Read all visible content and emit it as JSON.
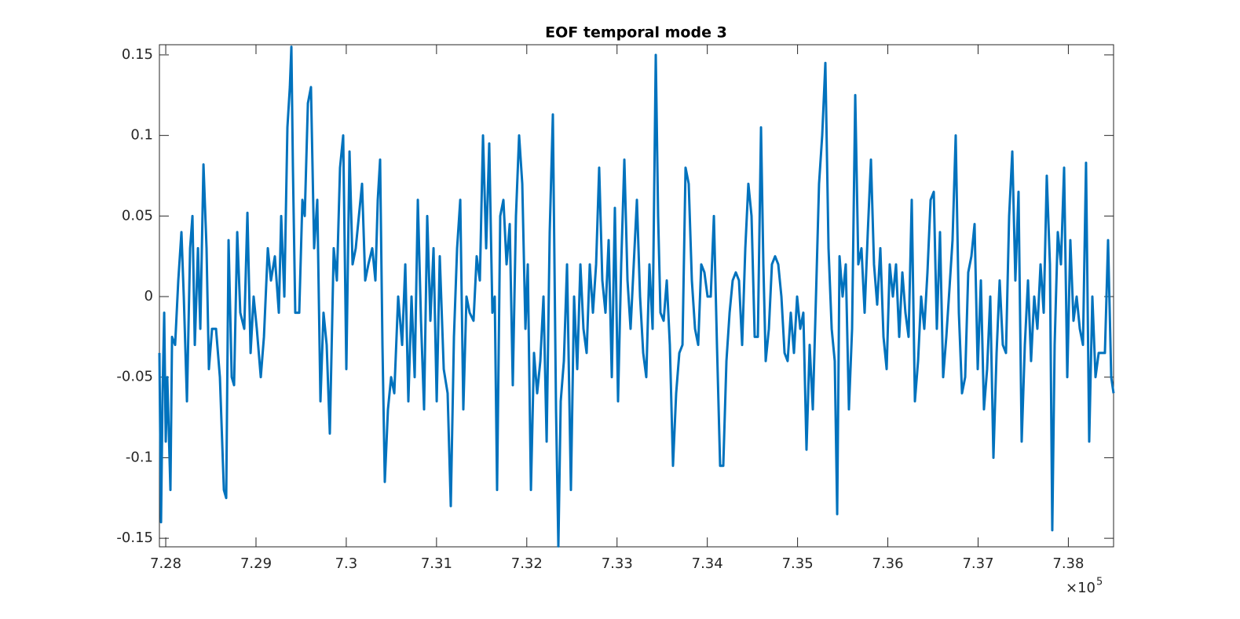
{
  "chart_data": {
    "type": "line",
    "title": "EOF temporal mode 3",
    "x_exponent": {
      "base": "×10",
      "power": "5"
    },
    "xlim": [
      727930,
      738501
    ],
    "xticks": [
      {
        "value": 728000,
        "label": "7.28"
      },
      {
        "value": 729000,
        "label": "7.29"
      },
      {
        "value": 730000,
        "label": "7.3"
      },
      {
        "value": 731000,
        "label": "7.31"
      },
      {
        "value": 732000,
        "label": "7.32"
      },
      {
        "value": 733000,
        "label": "7.33"
      },
      {
        "value": 734000,
        "label": "7.34"
      },
      {
        "value": 735000,
        "label": "7.35"
      },
      {
        "value": 736000,
        "label": "7.36"
      },
      {
        "value": 737000,
        "label": "7.37"
      },
      {
        "value": 738000,
        "label": "7.38"
      }
    ],
    "ylim": [
      -0.1553,
      0.1563
    ],
    "yticks": [
      -0.15,
      -0.1,
      -0.05,
      0,
      0.05,
      0.1,
      0.15
    ],
    "grid": false,
    "x": [
      727930,
      727948,
      727965,
      727983,
      728000,
      728017,
      728052,
      728070,
      728104,
      728139,
      728174,
      728200,
      728235,
      728270,
      728296,
      728322,
      728357,
      728383,
      728418,
      728452,
      728478,
      728513,
      728557,
      728600,
      728644,
      728670,
      728696,
      728731,
      728757,
      728792,
      728826,
      728870,
      728905,
      728940,
      728974,
      729009,
      729053,
      729088,
      729131,
      729166,
      729209,
      729253,
      729279,
      729314,
      729348,
      729375,
      729392,
      729409,
      729435,
      729479,
      729514,
      729540,
      729575,
      729609,
      729644,
      729679,
      729714,
      729748,
      729783,
      729818,
      729861,
      729896,
      729931,
      729966,
      730001,
      730036,
      730070,
      730105,
      730140,
      730175,
      730210,
      730245,
      730288,
      730323,
      730349,
      730375,
      730401,
      730427,
      730462,
      730497,
      730532,
      730575,
      730619,
      730654,
      730688,
      730723,
      730758,
      730793,
      730828,
      730862,
      730897,
      730932,
      730967,
      731002,
      731036,
      731080,
      731123,
      731158,
      731193,
      731228,
      731263,
      731297,
      731332,
      731367,
      731410,
      731445,
      731480,
      731515,
      731550,
      731584,
      731619,
      731645,
      731671,
      731706,
      731741,
      731776,
      731811,
      731845,
      731880,
      731915,
      731950,
      731985,
      732011,
      732046,
      732080,
      732115,
      732150,
      732185,
      732220,
      732254,
      732289,
      732324,
      732350,
      732376,
      732411,
      732446,
      732489,
      732524,
      732559,
      732594,
      732628,
      732663,
      732698,
      732733,
      732768,
      732802,
      732837,
      732872,
      732907,
      732942,
      732976,
      733011,
      733046,
      733081,
      733116,
      733150,
      733185,
      733220,
      733255,
      733290,
      733324,
      733359,
      733394,
      733429,
      733455,
      733481,
      733516,
      733551,
      733585,
      733620,
      733655,
      733690,
      733725,
      733759,
      733794,
      733829,
      733864,
      733899,
      733933,
      733968,
      734003,
      734038,
      734073,
      734107,
      734142,
      734177,
      734212,
      734247,
      734281,
      734316,
      734351,
      734386,
      734421,
      734455,
      734490,
      734525,
      734560,
      734595,
      734621,
      734647,
      734682,
      734716,
      734751,
      734786,
      734821,
      734856,
      734890,
      734925,
      734960,
      734995,
      735030,
      735064,
      735099,
      735134,
      735169,
      735204,
      735238,
      735273,
      735308,
      735343,
      735378,
      735412,
      735439,
      735465,
      735499,
      735534,
      735569,
      735604,
      735639,
      735673,
      735708,
      735743,
      735778,
      735813,
      735847,
      735882,
      735917,
      735952,
      735987,
      736021,
      736056,
      736091,
      736126,
      736161,
      736195,
      736230,
      736265,
      736300,
      736335,
      736369,
      736404,
      736439,
      736474,
      736509,
      736543,
      736578,
      736613,
      736648,
      736683,
      736717,
      736752,
      736787,
      736822,
      736857,
      736891,
      736926,
      736961,
      736996,
      737031,
      737065,
      737100,
      737135,
      737170,
      737205,
      737239,
      737274,
      737309,
      737344,
      737379,
      737413,
      737448,
      737483,
      737518,
      737553,
      737587,
      737622,
      737657,
      737692,
      737727,
      737761,
      737796,
      737822,
      737848,
      737883,
      737918,
      737953,
      737988,
      738022,
      738057,
      738092,
      738127,
      738162,
      738196,
      738231,
      738266,
      738301,
      738336,
      738370,
      738405,
      738440,
      738475,
      738501
    ],
    "series": [
      {
        "color": "#0072bd",
        "values": [
          -0.035,
          -0.14,
          -0.06,
          -0.01,
          -0.09,
          -0.05,
          -0.12,
          -0.025,
          -0.03,
          0.01,
          0.04,
          0.0,
          -0.065,
          0.03,
          0.05,
          -0.03,
          0.03,
          -0.02,
          0.082,
          0.03,
          -0.045,
          -0.02,
          -0.02,
          -0.05,
          -0.12,
          -0.125,
          0.035,
          -0.05,
          -0.055,
          0.04,
          -0.01,
          -0.02,
          0.052,
          -0.035,
          0.0,
          -0.02,
          -0.05,
          -0.025,
          0.03,
          0.01,
          0.025,
          -0.01,
          0.05,
          0.0,
          0.105,
          0.13,
          0.155,
          0.08,
          -0.01,
          -0.01,
          0.06,
          0.05,
          0.12,
          0.13,
          0.03,
          0.06,
          -0.065,
          -0.01,
          -0.03,
          -0.085,
          0.03,
          0.01,
          0.08,
          0.1,
          -0.045,
          0.09,
          0.02,
          0.03,
          0.05,
          0.07,
          0.01,
          0.02,
          0.03,
          0.01,
          0.06,
          0.085,
          -0.03,
          -0.115,
          -0.07,
          -0.05,
          -0.06,
          0.0,
          -0.03,
          0.02,
          -0.065,
          0.0,
          -0.05,
          0.06,
          -0.015,
          -0.07,
          0.05,
          -0.015,
          0.03,
          -0.065,
          0.025,
          -0.045,
          -0.06,
          -0.13,
          -0.025,
          0.03,
          0.06,
          -0.07,
          0.0,
          -0.01,
          -0.015,
          0.025,
          0.01,
          0.1,
          0.03,
          0.095,
          -0.01,
          0.0,
          -0.12,
          0.05,
          0.06,
          0.02,
          0.045,
          -0.055,
          0.05,
          0.1,
          0.07,
          -0.02,
          0.02,
          -0.12,
          -0.035,
          -0.06,
          -0.04,
          0.0,
          -0.09,
          0.04,
          0.113,
          -0.07,
          -0.155,
          -0.065,
          -0.04,
          0.02,
          -0.12,
          0.0,
          -0.045,
          0.02,
          -0.02,
          -0.035,
          0.02,
          -0.01,
          0.02,
          0.08,
          0.01,
          -0.01,
          0.035,
          -0.05,
          0.055,
          -0.065,
          0.02,
          0.085,
          0.01,
          -0.02,
          0.02,
          0.06,
          0.0,
          -0.035,
          -0.05,
          0.02,
          -0.02,
          0.15,
          0.05,
          -0.01,
          -0.015,
          0.01,
          -0.03,
          -0.105,
          -0.06,
          -0.035,
          -0.03,
          0.08,
          0.07,
          0.01,
          -0.02,
          -0.03,
          0.02,
          0.015,
          0.0,
          0.0,
          0.05,
          -0.03,
          -0.105,
          -0.105,
          -0.04,
          -0.01,
          0.01,
          0.015,
          0.01,
          -0.03,
          0.03,
          0.07,
          0.05,
          -0.025,
          -0.025,
          0.105,
          0.02,
          -0.04,
          -0.02,
          0.02,
          0.025,
          0.02,
          0.0,
          -0.035,
          -0.04,
          -0.01,
          -0.035,
          0.0,
          -0.02,
          -0.01,
          -0.095,
          -0.03,
          -0.07,
          0.0,
          0.07,
          0.1,
          0.145,
          0.03,
          -0.02,
          -0.04,
          -0.135,
          0.025,
          0.0,
          0.02,
          -0.07,
          -0.02,
          0.125,
          0.02,
          0.03,
          -0.01,
          0.04,
          0.085,
          0.02,
          -0.005,
          0.03,
          -0.025,
          -0.045,
          0.02,
          0.0,
          0.02,
          -0.025,
          0.015,
          -0.01,
          -0.025,
          0.06,
          -0.065,
          -0.04,
          0.0,
          -0.02,
          0.015,
          0.06,
          0.065,
          -0.02,
          0.04,
          -0.05,
          -0.025,
          0.005,
          0.035,
          0.1,
          -0.01,
          -0.06,
          -0.05,
          0.015,
          0.025,
          0.045,
          -0.045,
          0.01,
          -0.07,
          -0.045,
          0.0,
          -0.1,
          -0.035,
          0.01,
          -0.03,
          -0.035,
          0.05,
          0.09,
          0.01,
          0.065,
          -0.09,
          -0.03,
          0.01,
          -0.04,
          0.0,
          -0.02,
          0.02,
          -0.01,
          0.075,
          0.02,
          -0.145,
          -0.03,
          0.04,
          0.02,
          0.08,
          -0.05,
          0.035,
          -0.015,
          0.0,
          -0.02,
          -0.03,
          0.083,
          -0.09,
          0.0,
          -0.05,
          -0.035,
          -0.035,
          -0.035,
          0.035,
          -0.05,
          -0.06
        ]
      }
    ]
  }
}
